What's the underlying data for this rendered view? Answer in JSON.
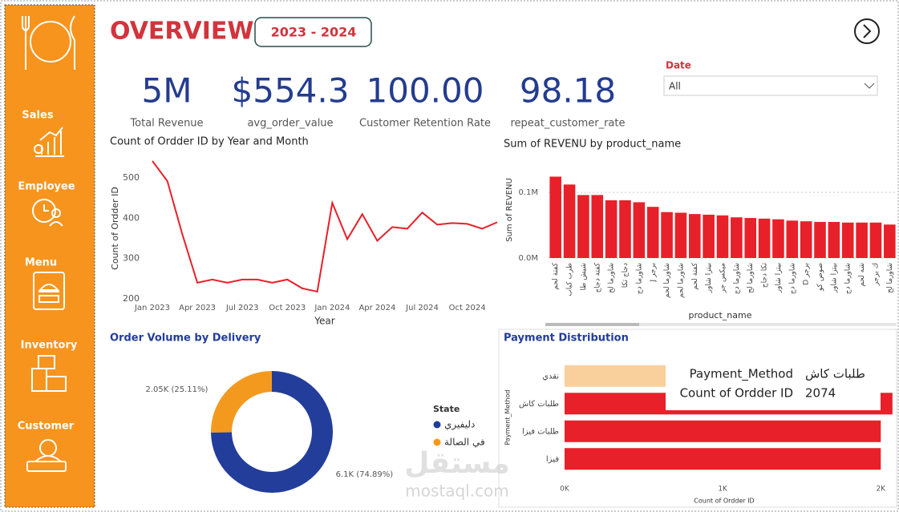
{
  "header": {
    "title": "OVERVIEW",
    "period": "2023 - 2024"
  },
  "sidebar": [
    "Sales",
    "Employee",
    "Menu",
    "Inventory",
    "Customer"
  ],
  "kpis": [
    {
      "value": "5M",
      "label": "Total Revenue"
    },
    {
      "value": "$554.3",
      "label": "avg_order_value"
    },
    {
      "value": "100.00",
      "label": "Customer Retention Rate"
    },
    {
      "value": "98.18",
      "label": "repeat_customer_rate"
    }
  ],
  "filter": {
    "label": "Date",
    "value": "All"
  },
  "watermark": {
    "arabic": "مستقل",
    "latin": "mostaql.com"
  },
  "chart_data": [
    {
      "type": "line",
      "title": "Count of Ordder ID by Year and Month",
      "x_label": "Year",
      "y_label": "Count of Ordder ID",
      "categories": [
        "Jan 2023",
        null,
        null,
        "Apr 2023",
        null,
        null,
        "Jul 2023",
        null,
        null,
        "Oct 2023",
        null,
        null,
        "Jan 2024",
        null,
        null,
        "Apr 2024",
        null,
        null,
        "Jul 2024",
        null,
        null,
        "Oct 2024",
        null,
        null
      ],
      "values": [
        542,
        492,
        360,
        240,
        248,
        240,
        248,
        248,
        240,
        248,
        226,
        218,
        438,
        348,
        410,
        344,
        378,
        374,
        414,
        384,
        388,
        386,
        374,
        390
      ],
      "color": "#e8202a",
      "ylim": [
        195,
        555
      ],
      "yticks": [
        200,
        300,
        400,
        500
      ],
      "grid": false
    },
    {
      "type": "bar",
      "title": "Sum of REVENU by product_name",
      "x_label": "product_name",
      "y_label": "Sum of REVENU",
      "categories": [
        "كفتة لحم",
        "طرب كباب",
        "شيش طا",
        "كفتة دجاج",
        "شاورما لح",
        "دجاج تكا",
        "شاورما دج",
        "J برجر",
        "شاورما لحم",
        "شاورما لحم",
        "كفتة لحم",
        "بيتزا شاور",
        "ميكس جر",
        "شاورما دج",
        "شاورما لح",
        "تكا دجاج",
        "بيتزا شاور",
        "شاورما دج",
        "D برجر",
        "صوص كو",
        "بيتزا شاور",
        "شاورما دج",
        "شه لحم",
        "ك برجر",
        "شاورما لح"
      ],
      "values": [
        124000,
        112000,
        96000,
        96000,
        88000,
        88000,
        85000,
        78000,
        70000,
        69000,
        67000,
        66000,
        65000,
        62000,
        61000,
        60000,
        59000,
        57000,
        56000,
        55000,
        55000,
        54000,
        54000,
        54000,
        51000
      ],
      "color": "#e8202a",
      "ylim": [
        0,
        149000
      ],
      "yticks": [
        {
          "value": 0,
          "label": "0.0M"
        },
        {
          "value": 100000,
          "label": "0.1M"
        }
      ],
      "grid": true
    },
    {
      "type": "donut",
      "title": "Order Volume by Delivery",
      "legend_title": "State",
      "categories": [
        "دليفيري",
        "في الصالة"
      ],
      "values": [
        6100,
        2050
      ],
      "value_labels": [
        "6.1K (74.89%)",
        "2.05K (25.11%)"
      ],
      "colors": [
        "#233d9b",
        "#f39a1e"
      ]
    },
    {
      "type": "bar",
      "orientation": "horizontal",
      "title": "Payment Distribution",
      "x_label": "Count of Ordder ID",
      "y_label": "Payment_Method",
      "categories": [
        "نقدي",
        "طلبات كاش",
        "طلبات فيزا",
        "فيزا"
      ],
      "values": [
        780,
        2074,
        2000,
        2000
      ],
      "colors": [
        "#f9cf9c",
        "#e8202a",
        "#e8202a",
        "#e8202a"
      ],
      "xlim": [
        0,
        2100
      ],
      "xticks": [
        {
          "value": 0,
          "label": "0K"
        },
        {
          "value": 1000,
          "label": "1K"
        },
        {
          "value": 2000,
          "label": "2K"
        }
      ],
      "grid": false,
      "tooltip": [
        [
          "Payment_Method",
          "طلبات كاش"
        ],
        [
          "Count of Ordder ID",
          "2074"
        ]
      ]
    }
  ]
}
